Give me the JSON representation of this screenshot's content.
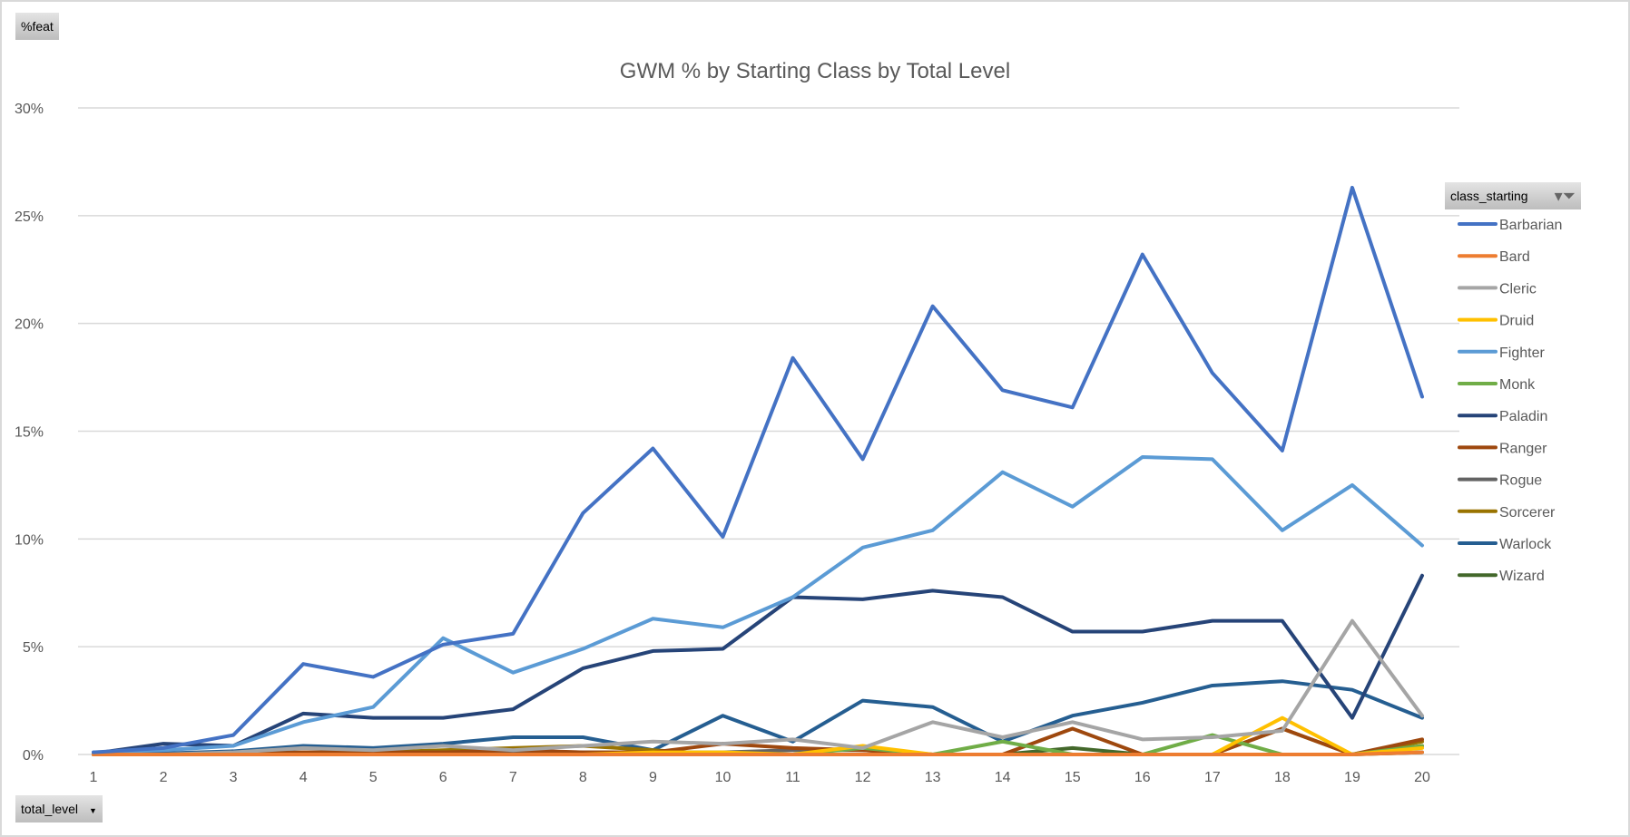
{
  "field_buttons": {
    "value": "%feat",
    "axis": "total_level",
    "legend": "class_starting"
  },
  "chart_data": {
    "type": "line",
    "title": "GWM % by Starting Class by Total Level",
    "xlabel": "total_level",
    "ylabel": "%feat",
    "x": [
      1,
      2,
      3,
      4,
      5,
      6,
      7,
      8,
      9,
      10,
      11,
      12,
      13,
      14,
      15,
      16,
      17,
      18,
      19,
      20
    ],
    "ylim": [
      0,
      30
    ],
    "yticks": [
      "0%",
      "5%",
      "10%",
      "15%",
      "20%",
      "25%",
      "30%"
    ],
    "grid": true,
    "legend_position": "right",
    "series": [
      {
        "name": "Barbarian",
        "color": "#4472c4",
        "values": [
          0.1,
          0.3,
          0.9,
          4.2,
          3.6,
          5.1,
          5.6,
          11.2,
          14.2,
          10.1,
          18.4,
          13.7,
          20.8,
          16.9,
          16.1,
          23.2,
          17.7,
          14.1,
          26.3,
          16.6
        ]
      },
      {
        "name": "Bard",
        "color": "#ed7d31",
        "values": [
          0,
          0,
          0,
          0,
          0,
          0,
          0,
          0,
          0,
          0,
          0,
          0,
          0,
          0,
          0,
          0,
          0,
          0,
          0,
          0.1
        ]
      },
      {
        "name": "Cleric",
        "color": "#a5a5a5",
        "values": [
          0,
          0,
          0.1,
          0.3,
          0.2,
          0.4,
          0.2,
          0.4,
          0.6,
          0.5,
          0.7,
          0.3,
          1.5,
          0.8,
          1.5,
          0.7,
          0.8,
          1.1,
          6.2,
          1.8
        ]
      },
      {
        "name": "Druid",
        "color": "#ffc000",
        "values": [
          0,
          0,
          0,
          0,
          0,
          0,
          0,
          0,
          0.1,
          0.1,
          0,
          0.4,
          0,
          0,
          0,
          0,
          0,
          1.7,
          0,
          0.3
        ]
      },
      {
        "name": "Fighter",
        "color": "#5b9bd5",
        "values": [
          0.1,
          0.2,
          0.4,
          1.5,
          2.2,
          5.4,
          3.8,
          4.9,
          6.3,
          5.9,
          7.3,
          9.6,
          10.4,
          13.1,
          11.5,
          13.8,
          13.7,
          10.4,
          12.5,
          9.7
        ]
      },
      {
        "name": "Monk",
        "color": "#70ad47",
        "values": [
          0,
          0,
          0,
          0,
          0,
          0,
          0,
          0,
          0,
          0,
          0,
          0.3,
          0,
          0.6,
          0,
          0,
          0.9,
          0,
          0,
          0.4
        ]
      },
      {
        "name": "Paladin",
        "color": "#264478",
        "values": [
          0.05,
          0.5,
          0.4,
          1.9,
          1.7,
          1.7,
          2.1,
          4.0,
          4.8,
          4.9,
          7.3,
          7.2,
          7.6,
          7.3,
          5.7,
          5.7,
          6.2,
          6.2,
          1.7,
          8.3
        ]
      },
      {
        "name": "Ranger",
        "color": "#9e480e",
        "values": [
          0,
          0,
          0,
          0.1,
          0.1,
          0.1,
          0.2,
          0.1,
          0.1,
          0.5,
          0.3,
          0.2,
          0,
          0,
          1.2,
          0,
          0,
          1.2,
          0,
          0.7
        ]
      },
      {
        "name": "Rogue",
        "color": "#636363",
        "values": [
          0,
          0,
          0.1,
          0.1,
          0.1,
          0.1,
          0.1,
          0.1,
          0.1,
          0.1,
          0.2,
          0.2,
          0,
          0,
          0,
          0,
          0,
          0,
          0,
          0.4
        ]
      },
      {
        "name": "Sorcerer",
        "color": "#997300",
        "values": [
          0,
          0,
          0,
          0.1,
          0.1,
          0.2,
          0.3,
          0.4,
          0.2,
          0,
          0,
          0,
          0,
          0,
          0,
          0,
          0,
          1.2,
          0,
          0.6
        ]
      },
      {
        "name": "Warlock",
        "color": "#255e91",
        "values": [
          0,
          0.05,
          0.15,
          0.4,
          0.3,
          0.5,
          0.8,
          0.8,
          0.2,
          1.8,
          0.6,
          2.5,
          2.2,
          0.6,
          1.8,
          2.4,
          3.2,
          3.4,
          3.0,
          1.7
        ]
      },
      {
        "name": "Wizard",
        "color": "#43682b",
        "values": [
          0,
          0,
          0,
          0,
          0,
          0,
          0.2,
          0.05,
          0,
          0,
          0,
          0,
          0,
          0,
          0.3,
          0,
          0,
          0,
          0,
          0.1
        ]
      }
    ]
  }
}
